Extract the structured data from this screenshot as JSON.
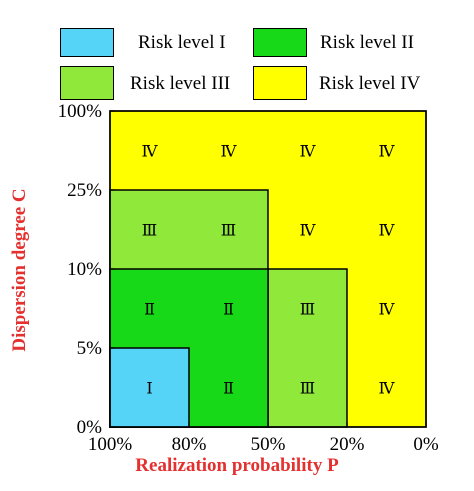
{
  "chart_data": {
    "type": "heatmap",
    "title": "",
    "xlabel": "Realization probability P",
    "ylabel": "Dispersion degree C",
    "x_ticks": [
      "100%",
      "80%",
      "50%",
      "20%",
      "0%"
    ],
    "y_ticks": [
      "0%",
      "5%",
      "10%",
      "25%",
      "100%"
    ],
    "legend": [
      {
        "label": "Risk level I",
        "color": "#55d4f7"
      },
      {
        "label": "Risk level II",
        "color": "#17d917"
      },
      {
        "label": "Risk level III",
        "color": "#8fe83a"
      },
      {
        "label": "Risk level IV",
        "color": "#ffff00"
      }
    ],
    "cells": [
      [
        "Ⅰ",
        "Ⅱ",
        "Ⅲ",
        "Ⅳ"
      ],
      [
        "Ⅱ",
        "Ⅱ",
        "Ⅲ",
        "Ⅳ"
      ],
      [
        "Ⅲ",
        "Ⅲ",
        "Ⅳ",
        "Ⅳ"
      ],
      [
        "Ⅳ",
        "Ⅳ",
        "Ⅳ",
        "Ⅳ"
      ]
    ],
    "regions": [
      {
        "level": "IV",
        "x": [
          0,
          4
        ],
        "y": [
          0,
          4
        ]
      },
      {
        "level": "III",
        "x": [
          0,
          2
        ],
        "y": [
          0,
          3
        ]
      },
      {
        "level": "III",
        "x": [
          2,
          3
        ],
        "y": [
          0,
          2
        ]
      },
      {
        "level": "II",
        "x": [
          0,
          2
        ],
        "y": [
          0,
          2
        ]
      },
      {
        "level": "I",
        "x": [
          0,
          1
        ],
        "y": [
          0,
          1
        ]
      }
    ],
    "grid": false
  }
}
